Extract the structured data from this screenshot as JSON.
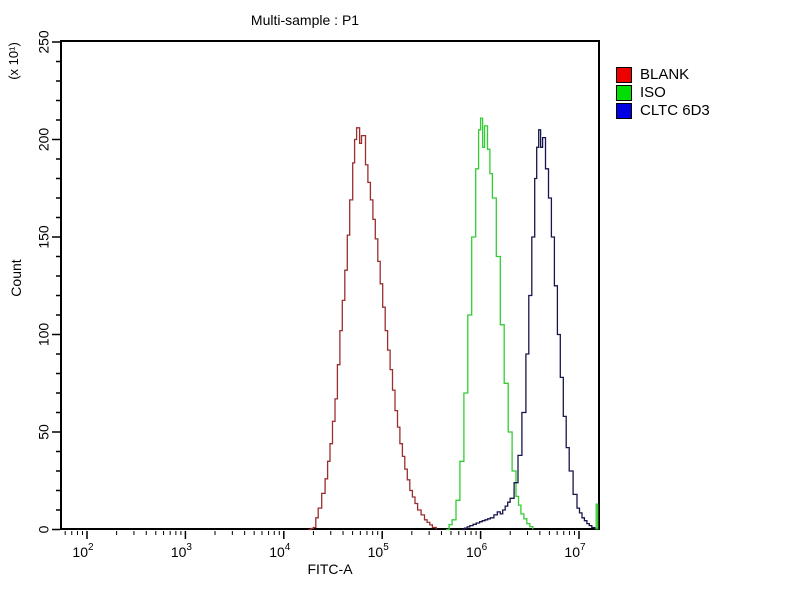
{
  "title": "Multi-sample : P1",
  "axes": {
    "x_label": "FITC-A",
    "y_label": "Count",
    "y_scale_note": "(x 10¹)"
  },
  "legend": {
    "items": [
      {
        "label": "BLANK",
        "color": "#ee0000"
      },
      {
        "label": "ISO",
        "color": "#00dd00"
      },
      {
        "label": "CLTC 6D3",
        "color": "#0000e0"
      }
    ]
  },
  "chart_data": {
    "type": "line",
    "subtype": "flow-cytometry-histogram-overlay",
    "title": "Multi-sample : P1",
    "xlabel": "FITC-A",
    "ylabel": "Count",
    "y_unit": "count (x 10^1)",
    "x_scale": "log10",
    "xlim_log10": [
      1.73,
      7.21
    ],
    "ylim": [
      0,
      250
    ],
    "x_tick_base": "10",
    "x_ticks_exponents": [
      2,
      3,
      4,
      5,
      6,
      7
    ],
    "y_ticks": [
      0,
      50,
      100,
      150,
      200,
      250
    ],
    "y_minor_step": 10,
    "grid": false,
    "legend_position": "outside-top-right",
    "series": [
      {
        "name": "BLANK",
        "curve_color": "#9a2f2f",
        "legend_color": "#ee0000",
        "peak_log10x": 4.74,
        "peak_x_approx": 55000,
        "peak_value": 206,
        "segments": [
          [
            [
              4.25,
              0
            ],
            [
              4.3,
              1
            ],
            [
              4.35,
              11
            ],
            [
              4.42,
              26
            ],
            [
              4.47,
              44
            ],
            [
              4.52,
              67
            ],
            [
              4.57,
              102
            ],
            [
              4.62,
              133
            ],
            [
              4.67,
              169
            ],
            [
              4.7,
              188
            ],
            [
              4.72,
              200
            ],
            [
              4.74,
              206
            ],
            [
              4.77,
              198
            ],
            [
              4.79,
              202
            ],
            [
              4.83,
              187
            ],
            [
              4.88,
              169
            ],
            [
              4.93,
              149
            ],
            [
              4.98,
              126
            ],
            [
              5.03,
              102
            ],
            [
              5.08,
              82
            ],
            [
              5.13,
              61
            ],
            [
              5.18,
              44
            ],
            [
              5.23,
              31
            ],
            [
              5.28,
              20
            ],
            [
              5.36,
              10
            ],
            [
              5.43,
              5
            ],
            [
              5.51,
              1
            ],
            [
              5.55,
              0
            ]
          ]
        ]
      },
      {
        "name": "ISO",
        "curve_color": "#33cc33",
        "legend_color": "#00dd00",
        "peak_log10x": 6.0,
        "peak_x_approx": 1000000,
        "peak_value": 211,
        "segments": [
          [
            [
              5.65,
              0
            ],
            [
              5.71,
              5
            ],
            [
              5.75,
              15
            ],
            [
              5.79,
              35
            ],
            [
              5.83,
              70
            ],
            [
              5.87,
              110
            ],
            [
              5.91,
              150
            ],
            [
              5.95,
              185
            ],
            [
              5.98,
              205
            ],
            [
              6.0,
              211
            ],
            [
              6.02,
              196
            ],
            [
              6.04,
              207
            ],
            [
              6.07,
              195
            ],
            [
              6.12,
              170
            ],
            [
              6.16,
              140
            ],
            [
              6.2,
              105
            ],
            [
              6.24,
              75
            ],
            [
              6.28,
              50
            ],
            [
              6.32,
              30
            ],
            [
              6.36,
              17
            ],
            [
              6.41,
              8
            ],
            [
              6.47,
              3
            ],
            [
              6.53,
              0
            ]
          ],
          [
            [
              7.175,
              0
            ],
            [
              7.175,
              13
            ],
            [
              7.19,
              13
            ],
            [
              7.19,
              0
            ]
          ]
        ]
      },
      {
        "name": "CLTC 6D3",
        "curve_color": "#16164a",
        "legend_color": "#0000e0",
        "peak_log10x": 6.59,
        "peak_x_approx": 3900000,
        "peak_value": 205,
        "segments": [
          [
            [
              5.81,
              0
            ],
            [
              5.89,
              2
            ],
            [
              5.99,
              4
            ],
            [
              6.1,
              6
            ],
            [
              6.17,
              9
            ],
            [
              6.2,
              8
            ],
            [
              6.25,
              12
            ],
            [
              6.3,
              16
            ],
            [
              6.34,
              24
            ],
            [
              6.38,
              38
            ],
            [
              6.42,
              60
            ],
            [
              6.46,
              90
            ],
            [
              6.49,
              120
            ],
            [
              6.52,
              150
            ],
            [
              6.55,
              180
            ],
            [
              6.57,
              196
            ],
            [
              6.59,
              205
            ],
            [
              6.61,
              196
            ],
            [
              6.63,
              201
            ],
            [
              6.66,
              185
            ],
            [
              6.69,
              170
            ],
            [
              6.72,
              150
            ],
            [
              6.75,
              125
            ],
            [
              6.78,
              100
            ],
            [
              6.81,
              78
            ],
            [
              6.84,
              58
            ],
            [
              6.87,
              42
            ],
            [
              6.9,
              30
            ],
            [
              6.94,
              18
            ],
            [
              6.98,
              11
            ],
            [
              7.03,
              6
            ],
            [
              7.08,
              3
            ],
            [
              7.13,
              1
            ],
            [
              7.16,
              0
            ]
          ]
        ]
      }
    ]
  }
}
